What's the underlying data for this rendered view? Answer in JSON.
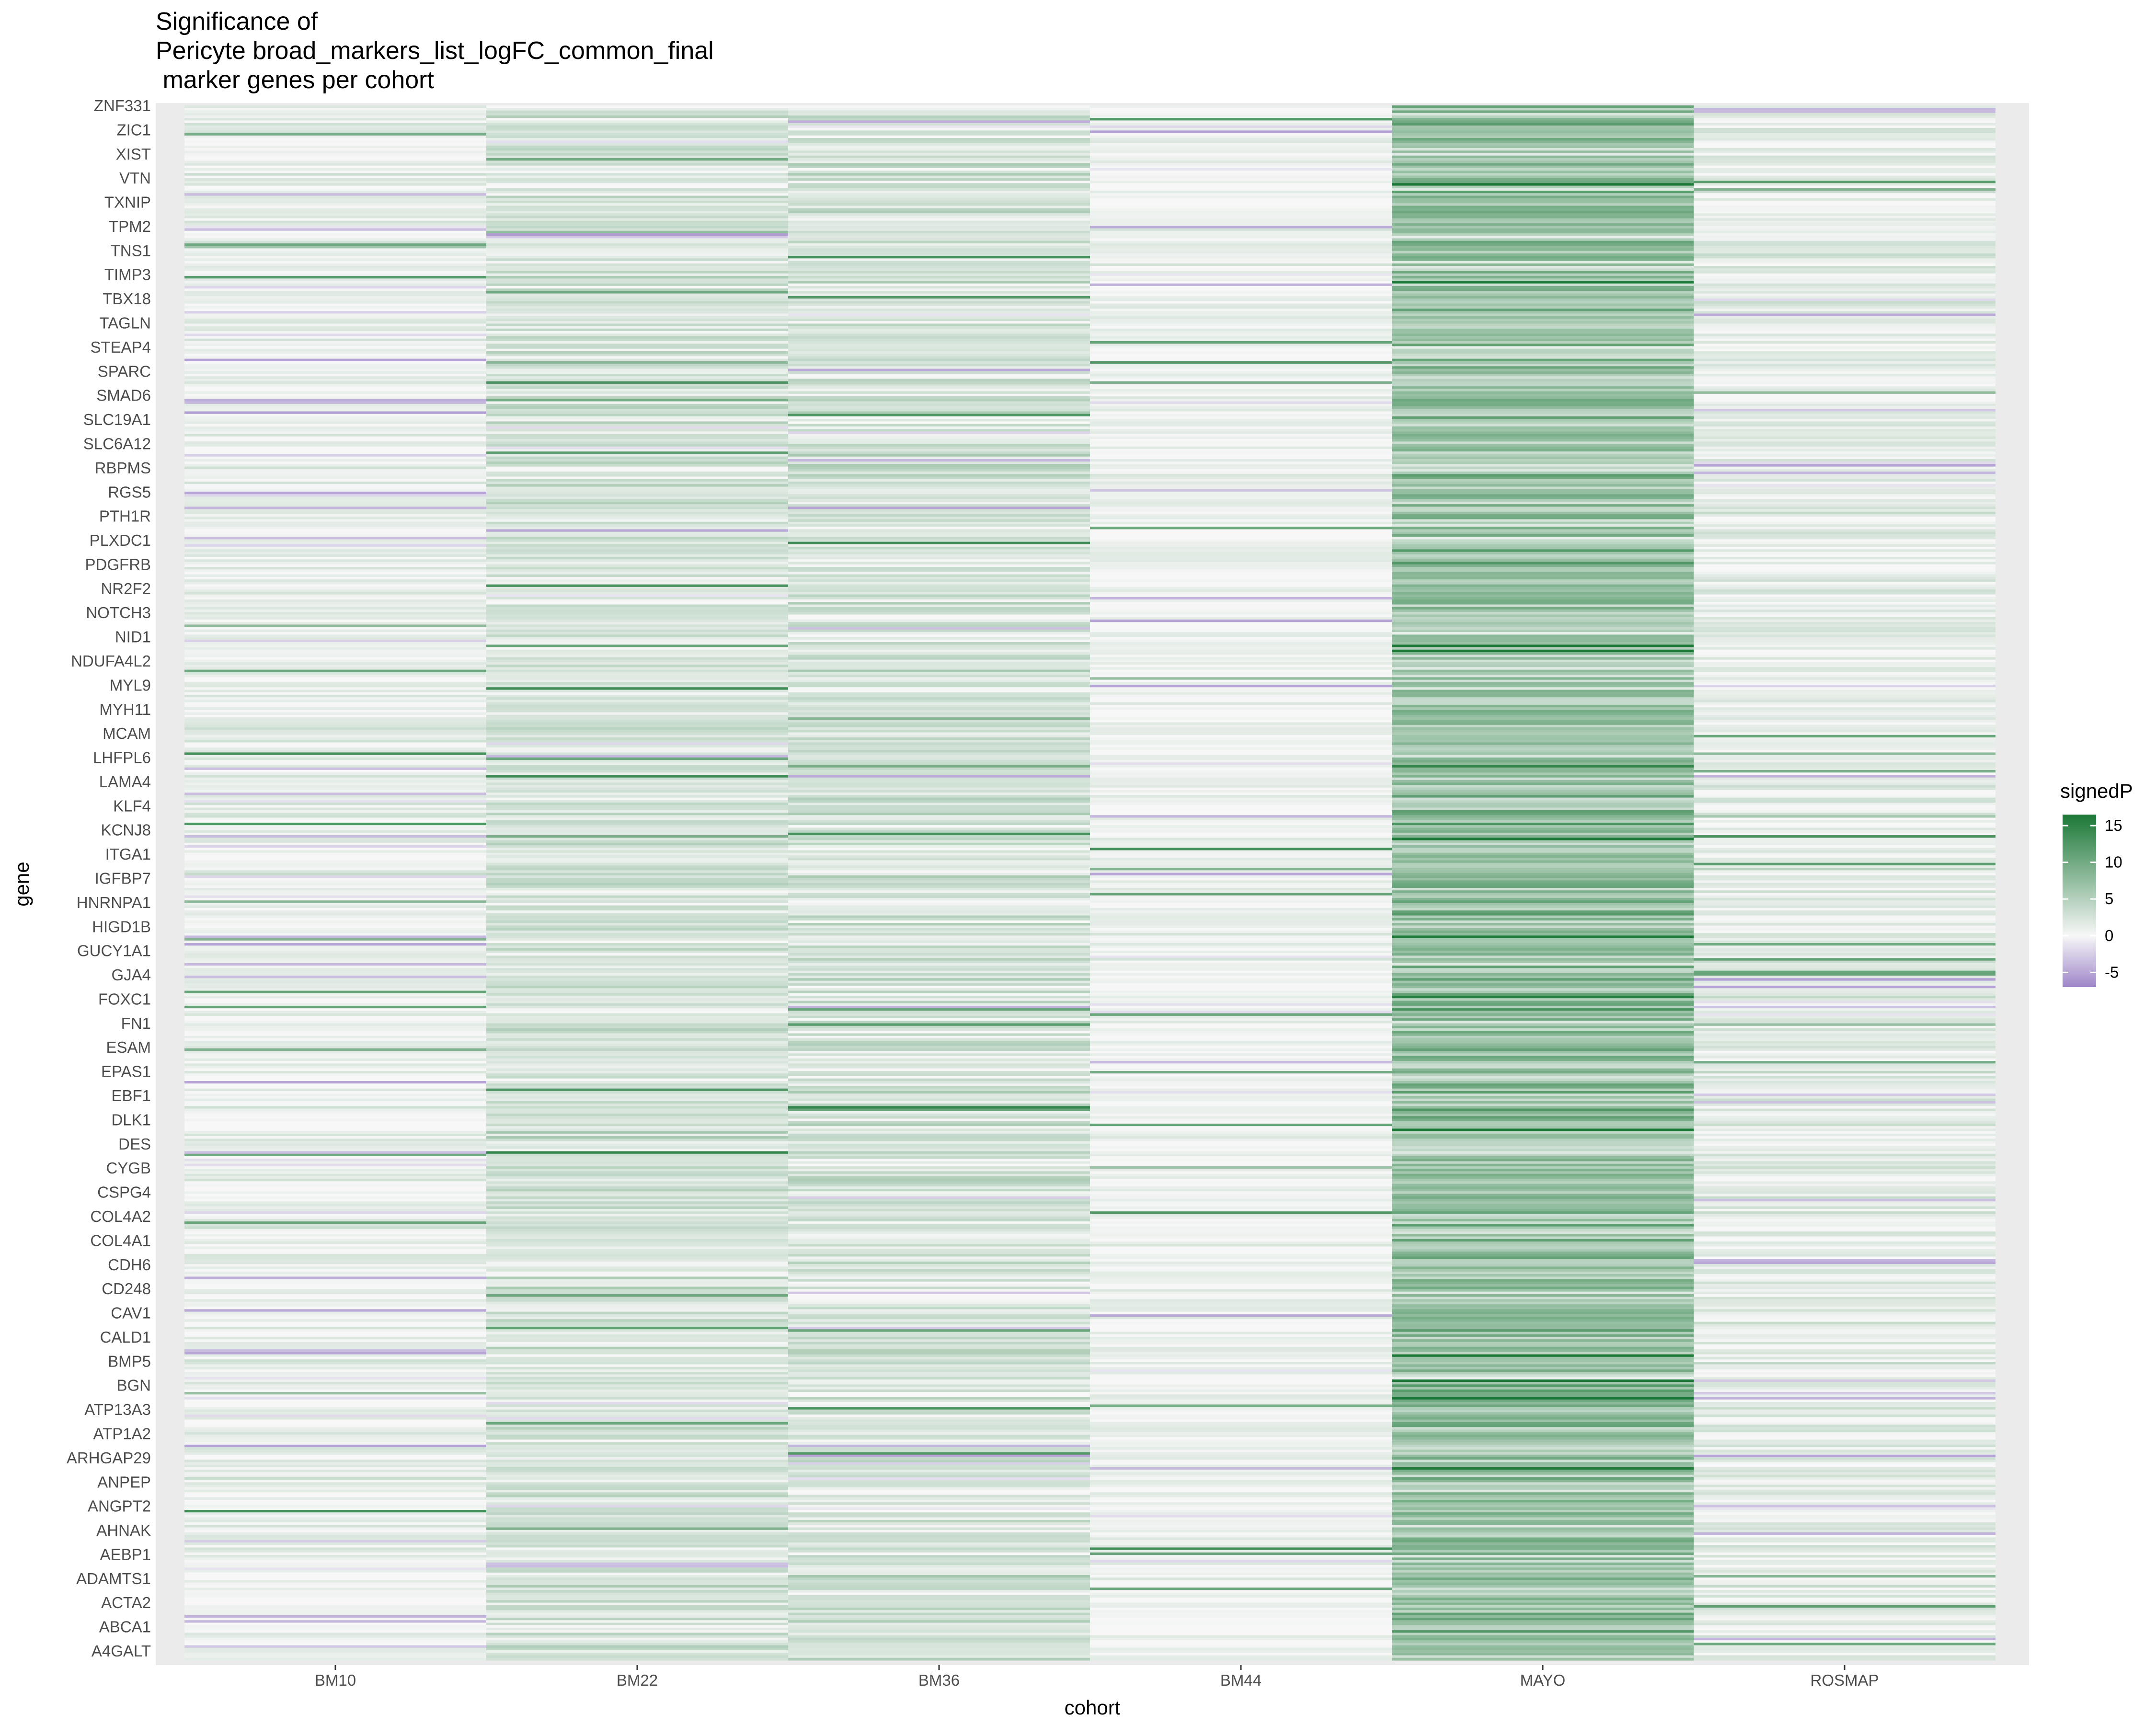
{
  "chart_data": {
    "type": "heatmap",
    "title_lines": [
      "Significance of",
      "Pericyte broad_markers_list_logFC_common_final",
      " marker genes per cohort"
    ],
    "xlabel": "cohort",
    "ylabel": "gene",
    "x_categories": [
      "BM10",
      "BM22",
      "BM36",
      "BM44",
      "MAYO",
      "ROSMAP"
    ],
    "gene_labels": [
      "A4GALT",
      "ABCA1",
      "ACTA2",
      "ADAMTS1",
      "AEBP1",
      "AHNAK",
      "ANGPT2",
      "ANPEP",
      "ARHGAP29",
      "ATP1A2",
      "ATP13A3",
      "BGN",
      "BMP5",
      "CALD1",
      "CAV1",
      "CD248",
      "CDH6",
      "COL4A1",
      "COL4A2",
      "CSPG4",
      "CYGB",
      "DES",
      "DLK1",
      "EBF1",
      "EPAS1",
      "ESAM",
      "FN1",
      "FOXC1",
      "GJA4",
      "GUCY1A1",
      "HIGD1B",
      "HNRNPA1",
      "IGFBP7",
      "ITGA1",
      "KCNJ8",
      "KLF4",
      "LAMA4",
      "LHFPL6",
      "MCAM",
      "MYH11",
      "MYL9",
      "NDUFA4L2",
      "NID1",
      "NOTCH3",
      "NR2F2",
      "PDGFRB",
      "PLXDC1",
      "PTH1R",
      "RGS5",
      "RBPMS",
      "SLC6A12",
      "SLC19A1",
      "SMAD6",
      "SPARC",
      "STEAP4",
      "TAGLN",
      "TBX18",
      "TIMP3",
      "TNS1",
      "TPM2",
      "TXNIP",
      "VTN",
      "XIST",
      "ZIC1",
      "ZNF331"
    ],
    "legend": {
      "title": "signedP",
      "ticks": [
        15,
        10,
        5,
        0,
        -5
      ],
      "range": [
        -7,
        16.5
      ],
      "colors": {
        "low": "#9e86c9",
        "mid": "#f7f7f7",
        "high": "#1b7837"
      }
    },
    "n_genes": 620,
    "cohort_profiles": {
      "BM10": {
        "mean": 0.9,
        "spread": 1.8,
        "neg_rate": 0.08
      },
      "BM22": {
        "mean": 2.4,
        "spread": 2.2,
        "neg_rate": 0.02
      },
      "BM36": {
        "mean": 2.3,
        "spread": 2.6,
        "neg_rate": 0.03
      },
      "BM44": {
        "mean": 0.6,
        "spread": 1.3,
        "neg_rate": 0.05
      },
      "MAYO": {
        "mean": 6.8,
        "spread": 4.2,
        "neg_rate": 0.0
      },
      "ROSMAP": {
        "mean": 1.3,
        "spread": 2.0,
        "neg_rate": 0.06
      }
    },
    "grid": true,
    "legend_position": "right"
  }
}
